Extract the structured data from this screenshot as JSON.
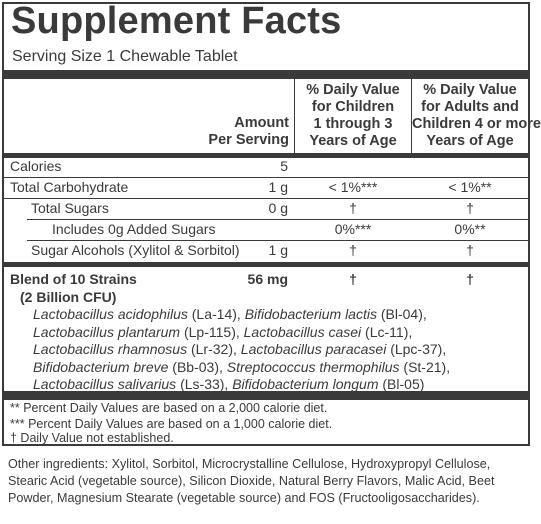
{
  "title": "Supplement Facts",
  "serving": "Serving Size 1 Chewable Tablet",
  "headers": {
    "amount_line1": "Amount",
    "amount_line2": "Per Serving",
    "children_line1": "% Daily Value",
    "children_line2": "for Children",
    "children_line3": "1 through 3",
    "children_line4": "Years of Age",
    "adults_line1": "% Daily Value",
    "adults_line2": "for Adults and",
    "adults_line3": "Children 4 or more",
    "adults_line4": "Years of Age"
  },
  "rows": [
    {
      "name": "Calories",
      "amount": "5",
      "children": "",
      "adults": ""
    },
    {
      "name": "Total Carbohydrate",
      "amount": "1 g",
      "children": "< 1%***",
      "adults": "< 1%**"
    },
    {
      "name": "Total Sugars",
      "amount": "0 g",
      "children": "†",
      "adults": "†"
    },
    {
      "name": "Includes 0g Added Sugars",
      "amount": "",
      "children": "0%***",
      "adults": "0%**"
    },
    {
      "name": "Sugar Alcohols (Xylitol & Sorbitol)",
      "amount": "1 g",
      "children": "†",
      "adults": "†"
    }
  ],
  "blend": {
    "name": "Blend of 10 Strains",
    "amount": "56 mg",
    "children": "†",
    "adults": "†",
    "cfu": "(2 Billion CFU)",
    "strains": [
      {
        "a": "Lactobacillus acidophilus",
        "a_code": " (La-14), ",
        "b": "Bifidobacterium lactis",
        "b_code": " (Bl-04),"
      },
      {
        "a": "Lactobacillus plantarum",
        "a_code": " (Lp-115), ",
        "b": "Lactobacillus casei",
        "b_code": " (Lc-11),"
      },
      {
        "a": "Lactobacillus rhamnosus",
        "a_code": " (Lr-32), ",
        "b": "Lactobacillus paracasei",
        "b_code": " (Lpc-37),"
      },
      {
        "a": "Bifidobacterium breve",
        "a_code": " (Bb-03), ",
        "b": "Streptococcus thermophilus",
        "b_code": " (St-21),"
      },
      {
        "a": "Lactobacillus salivarius",
        "a_code": " (Ls-33), ",
        "b": "Bifidobacterium longum",
        "b_code": " (Bl-05)"
      }
    ]
  },
  "footnotes": [
    "** Percent Daily Values are based on a 2,000 calorie diet.",
    "*** Percent Daily Values are based on a 1,000 calorie diet.",
    "† Daily Value not established."
  ],
  "other_ingredients": "Other ingredients: Xylitol, Sorbitol, Microcrystalline Cellulose, Hydroxypropyl Cellulose, Stearic Acid (vegetable source), Silicon Dioxide, Natural Berry Flavors, Malic Acid, Beet Powder, Magnesium Stearate (vegetable source) and FOS (Fructooligosaccharides)."
}
